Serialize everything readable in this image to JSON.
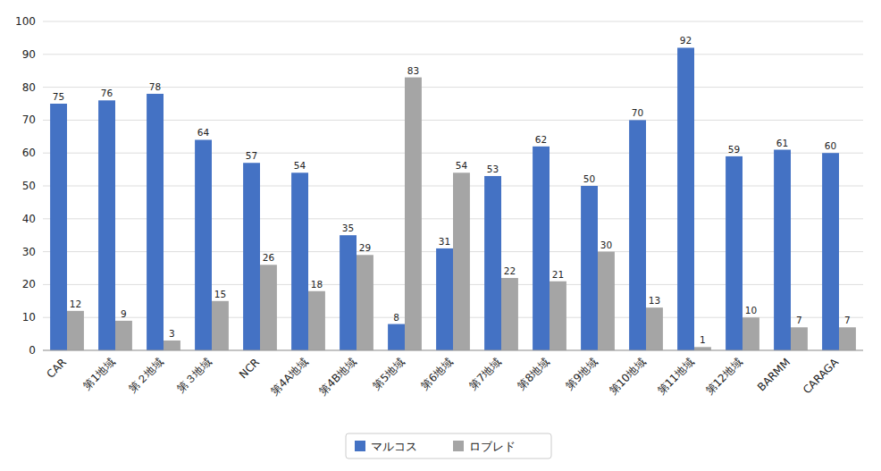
{
  "chart_data": {
    "type": "bar",
    "categories": [
      "CAR",
      "第1地域",
      "第２地域",
      "第３地域",
      "NCR",
      "第4A地域",
      "第4B地域",
      "第5地域",
      "第6地域",
      "第7地域",
      "第8地域",
      "第9地域",
      "第10地域",
      "第11地域",
      "第12地域",
      "BARMM",
      "CARAGA"
    ],
    "series": [
      {
        "name": "マルコス",
        "color": "#4472C4",
        "values": [
          75,
          76,
          78,
          64,
          57,
          54,
          35,
          8,
          31,
          53,
          62,
          50,
          70,
          92,
          59,
          61,
          60
        ]
      },
      {
        "name": "ロブレド",
        "color": "#A5A5A5",
        "values": [
          12,
          9,
          3,
          15,
          26,
          18,
          29,
          83,
          54,
          22,
          21,
          30,
          13,
          1,
          10,
          7,
          7
        ]
      }
    ],
    "ylim": [
      0,
      100
    ],
    "yticks": [
      0,
      10,
      20,
      30,
      40,
      50,
      60,
      70,
      80,
      90,
      100
    ],
    "grid": true,
    "legend": "bottom",
    "data_labels": true
  }
}
